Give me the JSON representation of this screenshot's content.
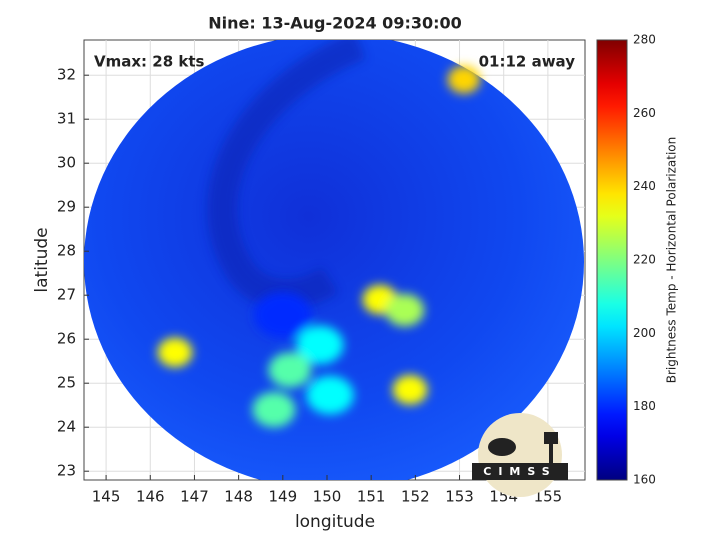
{
  "chart_data": {
    "type": "swath",
    "title": "Nine: 13-Aug-2024 09:30:00",
    "annotations": [
      "Vmax: 28 kts",
      "01:12 away"
    ],
    "xlabel": "longitude",
    "ylabel": "latitude",
    "xlim": [
      144.5,
      155.84
    ],
    "ylim": [
      22.8,
      32.8
    ],
    "xticks": [
      145,
      146,
      147,
      148,
      149,
      150,
      151,
      152,
      153,
      154,
      155
    ],
    "yticks": [
      23,
      24,
      25,
      26,
      27,
      28,
      29,
      30,
      31,
      32
    ],
    "grid": true,
    "features": {
      "x": [
        149.0,
        149.84,
        151.2,
        150.07,
        148.8,
        146.56,
        151.76,
        149.16,
        151.88,
        153.1
      ],
      "y": [
        26.55,
        25.87,
        26.9,
        24.73,
        24.4,
        25.7,
        26.66,
        25.3,
        24.85,
        31.9
      ],
      "values": [
        180,
        205,
        235,
        205,
        215,
        235,
        225,
        215,
        235,
        240
      ]
    },
    "colorbar": {
      "label": "Brightness Temp - Horizontal Polarization",
      "lim": [
        160,
        280
      ],
      "ticks": [
        160,
        180,
        200,
        220,
        240,
        260,
        280
      ],
      "colormap": "jet"
    },
    "logo": "CIMSS"
  }
}
